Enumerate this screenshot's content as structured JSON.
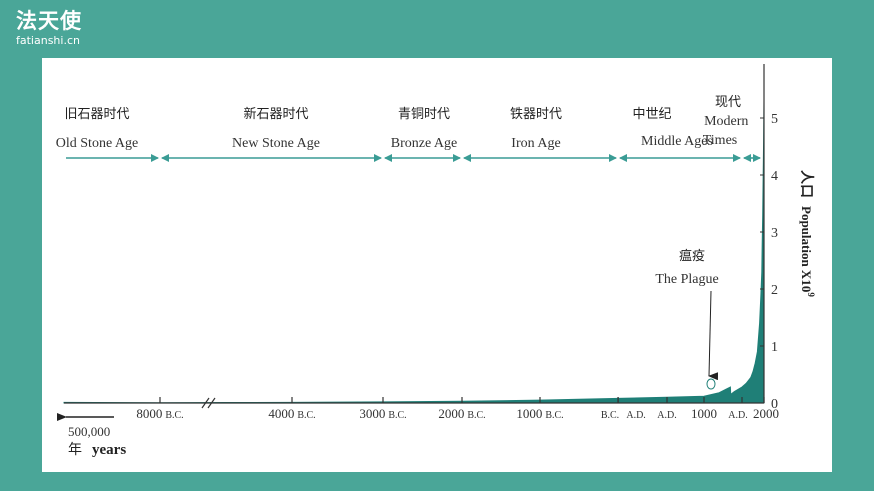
{
  "brand": {
    "title": "法天使",
    "url": "fatianshi.cn"
  },
  "colors": {
    "background": "#4aa698",
    "population_fill": "#1f7f77",
    "era_arrow": "#3a9c95",
    "axis": "#333333",
    "panel": "#ffffff"
  },
  "chart_data": {
    "type": "area",
    "title": "",
    "ylabel": "人口 Population X10⁹",
    "ylabel_zh": "人口",
    "ylabel_en": "Population X10",
    "ylabel_exp": "9",
    "xlabel_zh": "年",
    "xlabel_en": "years",
    "start_label": "500,000",
    "ylim": [
      0,
      5.5
    ],
    "yticks": [
      0,
      1,
      2,
      3,
      4,
      5
    ],
    "x_axis_break": "between 8000 B.C. and 4000 B.C.",
    "x_ticks": [
      {
        "year": -8000,
        "num": "8000",
        "suffix": "B.C."
      },
      {
        "year": -4000,
        "num": "4000",
        "suffix": "B.C."
      },
      {
        "year": -3000,
        "num": "3000",
        "suffix": "B.C."
      },
      {
        "year": -2000,
        "num": "2000",
        "suffix": "B.C."
      },
      {
        "year": -1000,
        "num": "1000",
        "suffix": "B.C."
      },
      {
        "year": 0,
        "num": "",
        "suffix": "B.C."
      },
      {
        "year": 1,
        "num": "",
        "suffix": "A.D."
      },
      {
        "year": 500,
        "num": "",
        "suffix": "A.D."
      },
      {
        "year": 1000,
        "num": "1000",
        "suffix": ""
      },
      {
        "year": 1500,
        "num": "",
        "suffix": "A.D."
      },
      {
        "year": 2000,
        "num": "2000",
        "suffix": ""
      }
    ],
    "series": [
      {
        "x": [
          -500000,
          -10000,
          -8000,
          -6000,
          -4000,
          -3000,
          -2000,
          -1000,
          0,
          500,
          1000,
          1200,
          1300,
          1347,
          1351,
          1400,
          1500,
          1600,
          1700,
          1750,
          1800,
          1850,
          1900,
          1930,
          1950,
          1960,
          1970,
          1980,
          1990,
          2000
        ],
        "values": [
          0.01,
          0.004,
          0.005,
          0.008,
          0.01,
          0.02,
          0.03,
          0.05,
          0.08,
          0.1,
          0.12,
          0.18,
          0.25,
          0.28,
          0.15,
          0.2,
          0.28,
          0.35,
          0.45,
          0.55,
          0.7,
          0.9,
          1.4,
          1.9,
          2.3,
          2.8,
          3.3,
          3.9,
          4.6,
          5.3
        ]
      }
    ],
    "eras": [
      {
        "zh": "旧石器时代",
        "en": "Old Stone Age"
      },
      {
        "zh": "新石器时代",
        "en": "New Stone Age"
      },
      {
        "zh": "青铜时代",
        "en": "Bronze Age"
      },
      {
        "zh": "铁器时代",
        "en": "Iron Age"
      },
      {
        "zh": "中世纪",
        "en": "Middle Ages"
      },
      {
        "zh": "现代",
        "en": "Modern Times"
      }
    ],
    "annotation": {
      "zh": "瘟疫",
      "en": "The Plague",
      "year": 1350
    }
  }
}
